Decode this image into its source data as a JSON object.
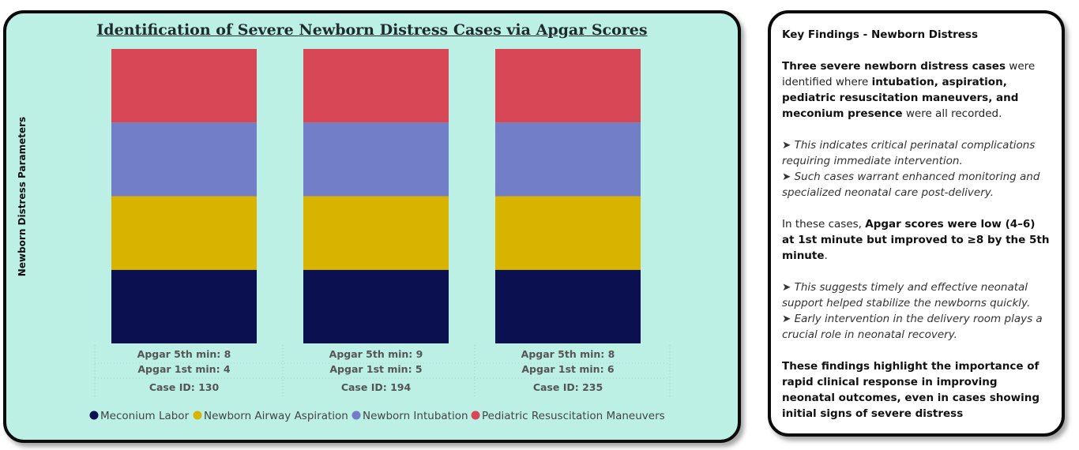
{
  "chart_data": {
    "type": "bar",
    "stacked": true,
    "title": "Identification of Severe Newborn Distress Cases via Apgar Scores",
    "ylabel": "Newborn Distress Parameters",
    "xlabel": "",
    "grid": false,
    "legend_position": "bottom",
    "categories": [
      {
        "case_id": "Case ID: 130",
        "apgar_1st": "Apgar 1st min: 4",
        "apgar_5th": "Apgar 5th min: 8"
      },
      {
        "case_id": "Case ID: 194",
        "apgar_1st": "Apgar 1st min: 5",
        "apgar_5th": "Apgar 5th min: 9"
      },
      {
        "case_id": "Case ID: 235",
        "apgar_1st": "Apgar 1st min: 6",
        "apgar_5th": "Apgar 5th min: 8"
      }
    ],
    "series": [
      {
        "name": "Meconium Labor",
        "color": "#0b1150",
        "values": [
          1,
          1,
          1
        ]
      },
      {
        "name": "Newborn Airway Aspiration",
        "color": "#d8b400",
        "values": [
          1,
          1,
          1
        ]
      },
      {
        "name": "Newborn Intubation",
        "color": "#737ec8",
        "values": [
          1,
          1,
          1
        ]
      },
      {
        "name": "Pediatric Resuscitation Maneuvers",
        "color": "#d84755",
        "values": [
          1,
          1,
          1
        ]
      }
    ],
    "ylim": [
      0,
      4
    ]
  },
  "findings": {
    "title": "Key Findings - Newborn Distress",
    "p1_b1": "Three severe newborn distress cases",
    "p1_t1": " were identified where ",
    "p1_b2": "intubation, aspiration, pediatric resuscitation maneuvers, and meconium presence",
    "p1_t2": " were all recorded.",
    "bullet1": "➤ This indicates critical perinatal complications requiring immediate intervention.",
    "bullet2": "➤ Such cases warrant enhanced monitoring and specialized neonatal care post-delivery.",
    "p3_t1": "In these cases, ",
    "p3_b1": "Apgar scores were low (4–6) at 1st minute but improved to ≥8 by the 5th minute",
    "p3_t2": ".",
    "bullet3": "➤ This suggests timely and effective neonatal support helped stabilize the newborns quickly.",
    "bullet4": "➤ Early intervention in the delivery room plays a crucial role in neonatal recovery.",
    "conclusion": "These findings highlight the importance of rapid clinical response in improving neonatal outcomes, even in cases showing initial signs of severe distress"
  }
}
